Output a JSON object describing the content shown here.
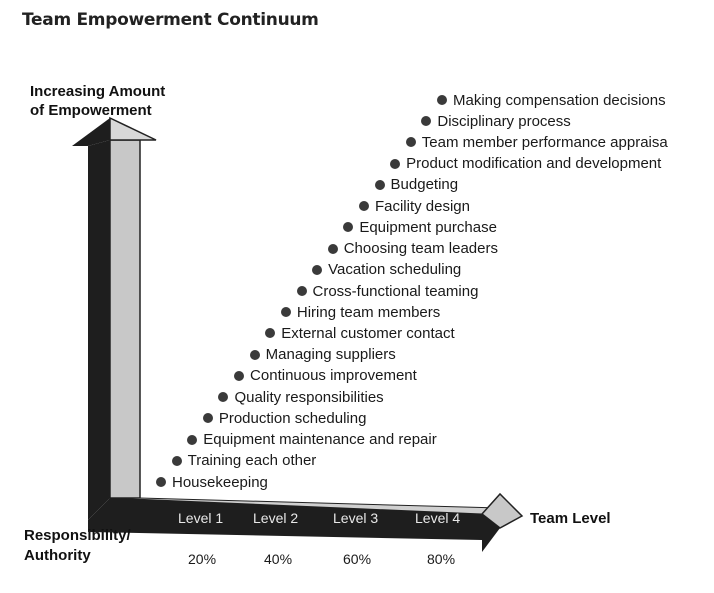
{
  "title": "Team Empowerment Continuum",
  "y_axis": {
    "line1": "Increasing Amount",
    "line2": "of Empowerment"
  },
  "x_axis": {
    "line1": "Responsibility/",
    "line2": "Authority",
    "right_label": "Team Level"
  },
  "levels": [
    "Level 1",
    "Level 2",
    "Level 3",
    "Level 4"
  ],
  "percents": [
    "20%",
    "40%",
    "60%",
    "80%"
  ],
  "items": [
    "Housekeeping",
    "Training each other",
    "Equipment maintenance and repair",
    "Production scheduling",
    "Quality responsibilities",
    "Continuous improvement",
    "Managing suppliers",
    "External customer contact",
    "Hiring team members",
    "Cross-functional teaming",
    "Vacation scheduling",
    "Choosing team leaders",
    "Equipment purchase",
    "Facility design",
    "Budgeting",
    "Product modification and development",
    "Team member performance appraisa",
    "Disciplinary process",
    "Making compensation decisions"
  ],
  "colors": {
    "arrow_dark": "#1e1e1e",
    "arrow_light": "#c8c8c8",
    "dot": "#3a3a3a"
  }
}
